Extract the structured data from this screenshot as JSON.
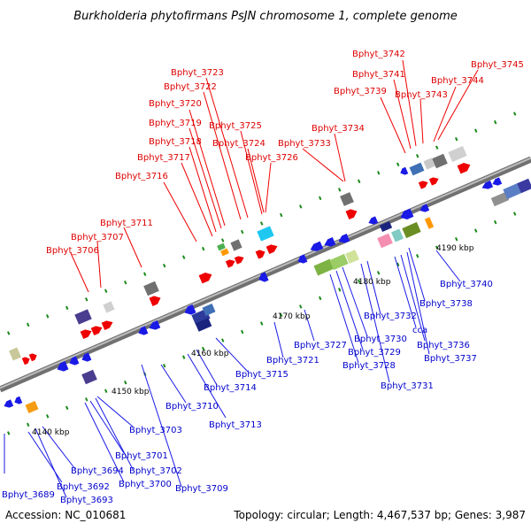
{
  "title": "Burkholderia phytofirmans PsJN chromosome 1, complete genome",
  "footer": {
    "accession": "Accession: NC_010681",
    "summary": "Topology: circular; Length: 4,467,537 bp; Genes: 3,987"
  },
  "scale_labels": [
    "4140 kbp",
    "4150 kbp",
    "4160 kbp",
    "4170 kbp",
    "4180 kbp",
    "4190 kbp"
  ],
  "colors": {
    "forward_label": "#dd0000",
    "reverse_label": "#0000cc",
    "forward_gene": "#ee0000",
    "reverse_gene": "#1a1ae6",
    "backbone": "#8a8a8a",
    "tick": "#1a8a1a"
  },
  "forward_labels": [
    "Bphyt_3706",
    "Bphyt_3707",
    "Bphyt_3711",
    "Bphyt_3716",
    "Bphyt_3717",
    "Bphyt_3718",
    "Bphyt_3719",
    "Bphyt_3720",
    "Bphyt_3722",
    "Bphyt_3723",
    "Bphyt_3724",
    "Bphyt_3725",
    "Bphyt_3726",
    "Bphyt_3733",
    "Bphyt_3734",
    "Bphyt_3739",
    "Bphyt_3741",
    "Bphyt_3742",
    "Bphyt_3743",
    "Bphyt_3744",
    "Bphyt_3745"
  ],
  "reverse_labels": [
    "Bphyt_3689",
    "Bphyt_3692",
    "Bphyt_3693",
    "Bphyt_3694",
    "Bphyt_3700",
    "Bphyt_3701",
    "Bphyt_3702",
    "Bphyt_3703",
    "Bphyt_3709",
    "Bphyt_3710",
    "Bphyt_3713",
    "Bphyt_3714",
    "Bphyt_3715",
    "Bphyt_3721",
    "Bphyt_3727",
    "Bphyt_3728",
    "Bphyt_3729",
    "Bphyt_3730",
    "Bphyt_3731",
    "Bphyt_3732",
    "cca",
    "Bphyt_3736",
    "Bphyt_3737",
    "Bphyt_3738",
    "Bphyt_3740"
  ]
}
